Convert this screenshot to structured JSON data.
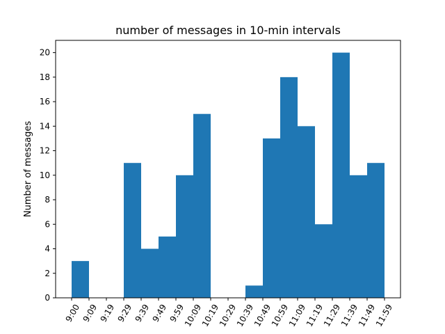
{
  "chart_data": {
    "type": "bar",
    "title": "number of messages in 10-min intervals",
    "xlabel": "",
    "ylabel": "Number of messages",
    "ylim": [
      0,
      21
    ],
    "yticks": [
      0,
      2,
      4,
      6,
      8,
      10,
      12,
      14,
      16,
      18,
      20
    ],
    "xticks": [
      "9:00",
      "9:09",
      "9:19",
      "9:29",
      "9:39",
      "9:49",
      "9:59",
      "10:09",
      "10:19",
      "10:29",
      "10:39",
      "10:49",
      "10:59",
      "11:09",
      "11:19",
      "11:29",
      "11:39",
      "11:49",
      "11:59"
    ],
    "values": [
      3,
      0,
      0,
      11,
      4,
      5,
      10,
      15,
      0,
      0,
      1,
      13,
      18,
      14,
      6,
      20,
      10,
      11
    ],
    "grid": false,
    "legend": "none",
    "bar_color": "#1f77b4"
  }
}
